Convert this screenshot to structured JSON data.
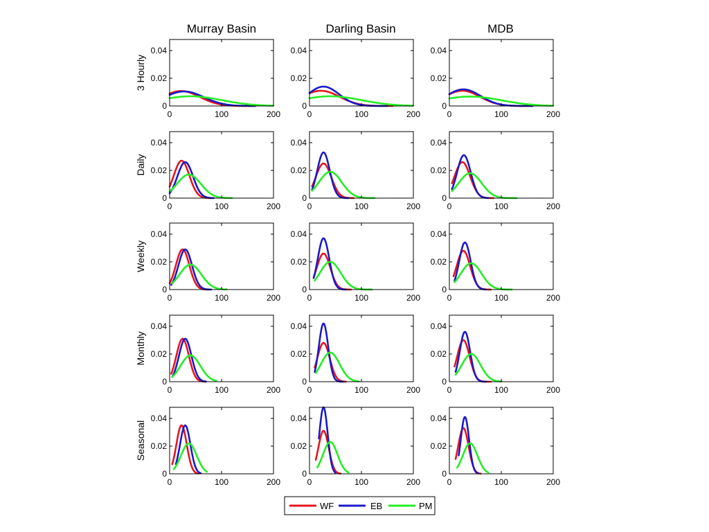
{
  "columns": [
    "Murray Basin",
    "Darling Basin",
    "MDB"
  ],
  "rows": [
    "3 Hourly",
    "Daily",
    "Weekly",
    "Monthly",
    "Seasonal"
  ],
  "legend": {
    "placement": "bottom-center",
    "items": [
      {
        "name": "WF",
        "color": "#e8141c"
      },
      {
        "name": "EB",
        "color": "#1a1ac8"
      },
      {
        "name": "PM",
        "color": "#22ee22"
      }
    ]
  },
  "axes": {
    "xlim": [
      0,
      200
    ],
    "ylim": [
      0,
      0.048
    ],
    "xticks": [
      0,
      100,
      200
    ],
    "xtick_labels": [
      "0",
      "100",
      "200"
    ],
    "yticks": [
      0,
      0.02,
      0.04
    ],
    "ytick_labels": [
      "0",
      "0.02",
      "0.04"
    ],
    "grid": false
  },
  "chart_data": [
    {
      "type": "line",
      "column": "Murray Basin",
      "row": "3 Hourly",
      "series": [
        {
          "name": "WF",
          "mu": 22,
          "peak": 0.0108,
          "sigma": 36,
          "x0": 0,
          "x1": 160
        },
        {
          "name": "EB",
          "mu": 28,
          "peak": 0.0105,
          "sigma": 38,
          "x0": 0,
          "x1": 165
        },
        {
          "name": "PM",
          "mu": 40,
          "peak": 0.007,
          "sigma": 60,
          "x0": 0,
          "x1": 200
        }
      ]
    },
    {
      "type": "line",
      "column": "Darling Basin",
      "row": "3 Hourly",
      "series": [
        {
          "name": "WF",
          "mu": 22,
          "peak": 0.011,
          "sigma": 36,
          "x0": 0,
          "x1": 160
        },
        {
          "name": "EB",
          "mu": 27,
          "peak": 0.014,
          "sigma": 30,
          "x0": 0,
          "x1": 150
        },
        {
          "name": "PM",
          "mu": 40,
          "peak": 0.007,
          "sigma": 60,
          "x0": 0,
          "x1": 200
        }
      ]
    },
    {
      "type": "line",
      "column": "MDB",
      "row": "3 Hourly",
      "series": [
        {
          "name": "WF",
          "mu": 25,
          "peak": 0.011,
          "sigma": 34,
          "x0": 0,
          "x1": 160
        },
        {
          "name": "EB",
          "mu": 27,
          "peak": 0.012,
          "sigma": 33,
          "x0": 0,
          "x1": 160
        },
        {
          "name": "PM",
          "mu": 40,
          "peak": 0.0068,
          "sigma": 60,
          "x0": 0,
          "x1": 200
        }
      ]
    },
    {
      "type": "line",
      "column": "Murray Basin",
      "row": "Daily",
      "series": [
        {
          "name": "WF",
          "mu": 23,
          "peak": 0.027,
          "sigma": 15,
          "x0": 0,
          "x1": 80
        },
        {
          "name": "EB",
          "mu": 30,
          "peak": 0.026,
          "sigma": 15,
          "x0": 0,
          "x1": 85
        },
        {
          "name": "PM",
          "mu": 37,
          "peak": 0.017,
          "sigma": 23,
          "x0": 0,
          "x1": 120
        }
      ]
    },
    {
      "type": "line",
      "column": "Darling Basin",
      "row": "Daily",
      "series": [
        {
          "name": "WF",
          "mu": 27,
          "peak": 0.025,
          "sigma": 15,
          "x0": 5,
          "x1": 85
        },
        {
          "name": "EB",
          "mu": 27,
          "peak": 0.033,
          "sigma": 12,
          "x0": 5,
          "x1": 75
        },
        {
          "name": "PM",
          "mu": 40,
          "peak": 0.019,
          "sigma": 22,
          "x0": 5,
          "x1": 125
        }
      ]
    },
    {
      "type": "line",
      "column": "MDB",
      "row": "Daily",
      "series": [
        {
          "name": "WF",
          "mu": 25,
          "peak": 0.026,
          "sigma": 15,
          "x0": 5,
          "x1": 85
        },
        {
          "name": "EB",
          "mu": 28,
          "peak": 0.031,
          "sigma": 13,
          "x0": 5,
          "x1": 75
        },
        {
          "name": "PM",
          "mu": 40,
          "peak": 0.018,
          "sigma": 22,
          "x0": 5,
          "x1": 130
        }
      ]
    },
    {
      "type": "line",
      "column": "Murray Basin",
      "row": "Weekly",
      "series": [
        {
          "name": "WF",
          "mu": 25,
          "peak": 0.029,
          "sigma": 13,
          "x0": 0,
          "x1": 75
        },
        {
          "name": "EB",
          "mu": 30,
          "peak": 0.029,
          "sigma": 13,
          "x0": 3,
          "x1": 80
        },
        {
          "name": "PM",
          "mu": 40,
          "peak": 0.018,
          "sigma": 21,
          "x0": 5,
          "x1": 110
        }
      ]
    },
    {
      "type": "line",
      "column": "Darling Basin",
      "row": "Weekly",
      "series": [
        {
          "name": "WF",
          "mu": 27,
          "peak": 0.026,
          "sigma": 13,
          "x0": 8,
          "x1": 80
        },
        {
          "name": "EB",
          "mu": 27,
          "peak": 0.037,
          "sigma": 11,
          "x0": 8,
          "x1": 70
        },
        {
          "name": "PM",
          "mu": 40,
          "peak": 0.02,
          "sigma": 20,
          "x0": 10,
          "x1": 120
        }
      ]
    },
    {
      "type": "line",
      "column": "MDB",
      "row": "Weekly",
      "series": [
        {
          "name": "WF",
          "mu": 27,
          "peak": 0.028,
          "sigma": 13,
          "x0": 8,
          "x1": 80
        },
        {
          "name": "EB",
          "mu": 30,
          "peak": 0.034,
          "sigma": 11,
          "x0": 10,
          "x1": 70
        },
        {
          "name": "PM",
          "mu": 42,
          "peak": 0.019,
          "sigma": 20,
          "x0": 10,
          "x1": 120
        }
      ]
    },
    {
      "type": "line",
      "column": "Murray Basin",
      "row": "Monthly",
      "series": [
        {
          "name": "WF",
          "mu": 25,
          "peak": 0.031,
          "sigma": 12,
          "x0": 3,
          "x1": 70
        },
        {
          "name": "EB",
          "mu": 30,
          "peak": 0.031,
          "sigma": 12,
          "x0": 5,
          "x1": 70
        },
        {
          "name": "PM",
          "mu": 40,
          "peak": 0.019,
          "sigma": 19,
          "x0": 5,
          "x1": 90
        }
      ]
    },
    {
      "type": "line",
      "column": "Darling Basin",
      "row": "Monthly",
      "series": [
        {
          "name": "WF",
          "mu": 27,
          "peak": 0.028,
          "sigma": 12,
          "x0": 10,
          "x1": 70
        },
        {
          "name": "EB",
          "mu": 27,
          "peak": 0.042,
          "sigma": 9,
          "x0": 10,
          "x1": 65
        },
        {
          "name": "PM",
          "mu": 40,
          "peak": 0.021,
          "sigma": 18,
          "x0": 12,
          "x1": 95
        }
      ]
    },
    {
      "type": "line",
      "column": "MDB",
      "row": "Monthly",
      "series": [
        {
          "name": "WF",
          "mu": 27,
          "peak": 0.03,
          "sigma": 12,
          "x0": 10,
          "x1": 80
        },
        {
          "name": "EB",
          "mu": 30,
          "peak": 0.036,
          "sigma": 10,
          "x0": 12,
          "x1": 70
        },
        {
          "name": "PM",
          "mu": 42,
          "peak": 0.02,
          "sigma": 18,
          "x0": 12,
          "x1": 100
        }
      ]
    },
    {
      "type": "line",
      "column": "Murray Basin",
      "row": "Seasonal",
      "series": [
        {
          "name": "WF",
          "mu": 23,
          "peak": 0.035,
          "sigma": 10,
          "x0": 5,
          "x1": 55
        },
        {
          "name": "EB",
          "mu": 30,
          "peak": 0.035,
          "sigma": 10,
          "x0": 12,
          "x1": 60
        },
        {
          "name": "PM",
          "mu": 37,
          "peak": 0.022,
          "sigma": 15,
          "x0": 8,
          "x1": 72
        }
      ]
    },
    {
      "type": "line",
      "column": "Darling Basin",
      "row": "Seasonal",
      "series": [
        {
          "name": "WF",
          "mu": 27,
          "peak": 0.031,
          "sigma": 10,
          "x0": 12,
          "x1": 60
        },
        {
          "name": "EB",
          "mu": 27,
          "peak": 0.048,
          "sigma": 8,
          "x0": 18,
          "x1": 50
        },
        {
          "name": "PM",
          "mu": 40,
          "peak": 0.023,
          "sigma": 14,
          "x0": 15,
          "x1": 75
        }
      ]
    },
    {
      "type": "line",
      "column": "MDB",
      "row": "Seasonal",
      "series": [
        {
          "name": "WF",
          "mu": 27,
          "peak": 0.033,
          "sigma": 10,
          "x0": 12,
          "x1": 60
        },
        {
          "name": "EB",
          "mu": 30,
          "peak": 0.041,
          "sigma": 8,
          "x0": 18,
          "x1": 55
        },
        {
          "name": "PM",
          "mu": 40,
          "peak": 0.022,
          "sigma": 14,
          "x0": 15,
          "x1": 75
        }
      ]
    }
  ]
}
